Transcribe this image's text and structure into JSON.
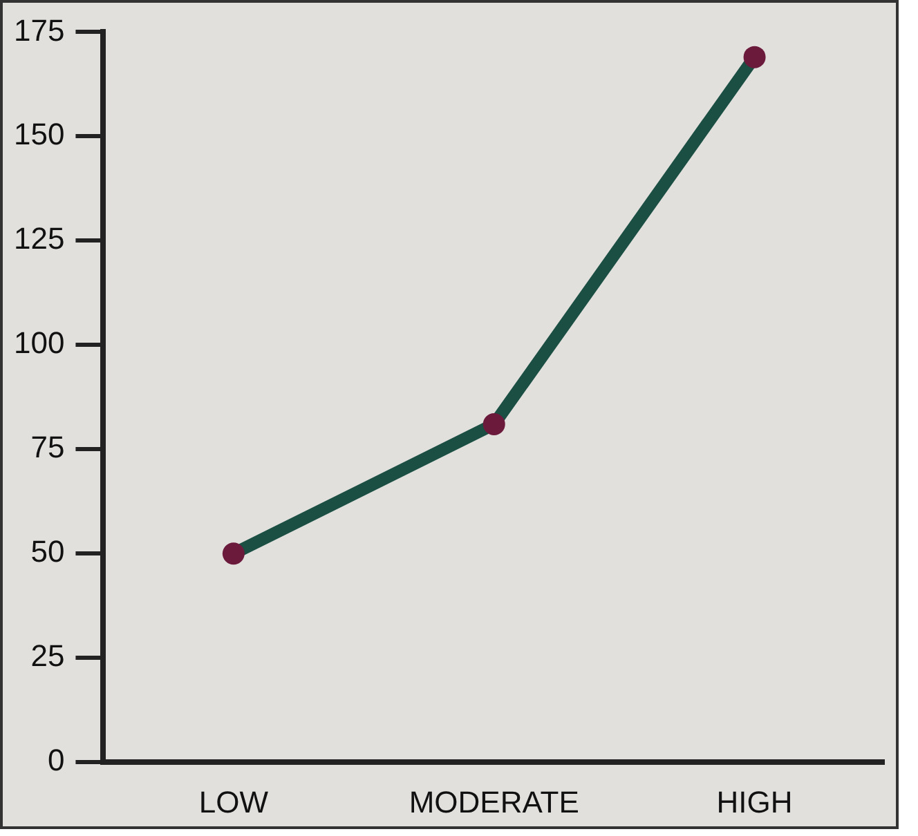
{
  "chart_data": {
    "type": "line",
    "categories": [
      "LOW",
      "MODERATE",
      "HIGH"
    ],
    "series": [
      {
        "color": "#1b4f43",
        "values": [
          50,
          81,
          169
        ]
      }
    ],
    "ylim": [
      0,
      175
    ],
    "yticks": [
      0,
      25,
      50,
      75,
      100,
      125,
      150,
      175
    ],
    "grid": false,
    "legend": false,
    "marker": "circle",
    "line_style": "solid"
  }
}
